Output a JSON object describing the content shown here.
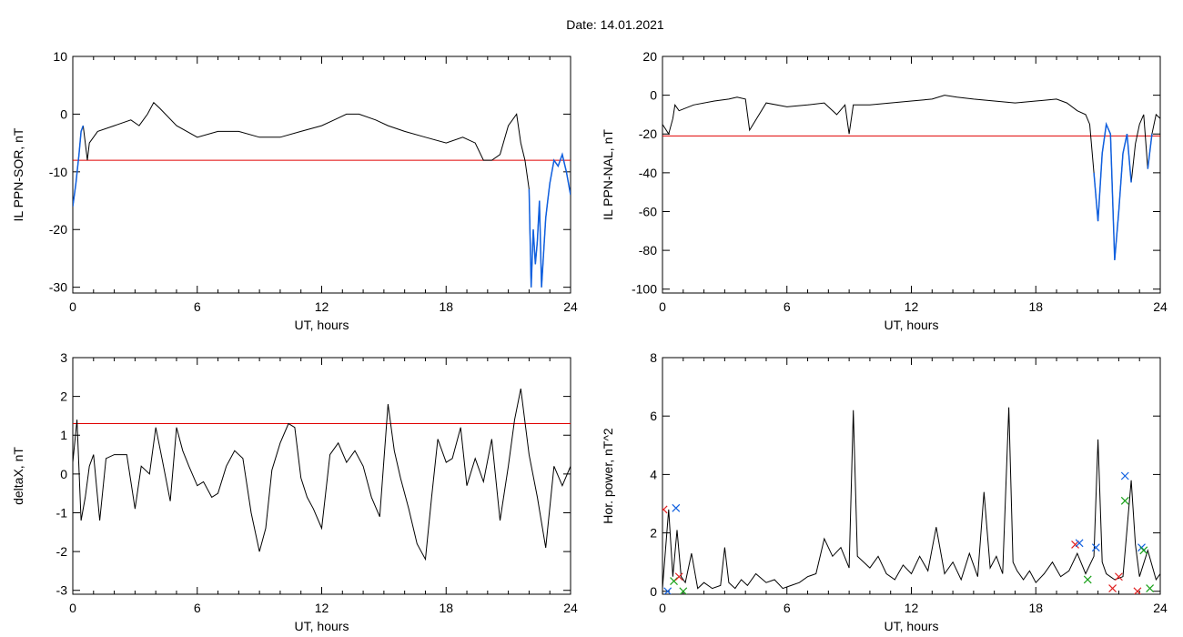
{
  "page": {
    "date_label": "Date:  14.01.2021"
  },
  "colors": {
    "trace": "#000000",
    "threshold": "#e00000",
    "highlight": "#1060e0",
    "marker_blue": "#1060e0",
    "marker_green": "#18a018",
    "marker_red": "#e02020"
  },
  "chart_data": [
    {
      "type": "line",
      "xlabel": "UT, hours",
      "ylabel": "IL PPN-SOR, nT",
      "xlim": [
        0,
        24
      ],
      "ylim": [
        -31,
        10
      ],
      "xticks": [
        0,
        6,
        12,
        18,
        24
      ],
      "yticks": [
        10,
        0,
        -10,
        -20,
        -30
      ],
      "grid": false,
      "threshold": -8,
      "series": [
        {
          "values_x": [
            0,
            0.15,
            0.3,
            0.4,
            0.5,
            0.7,
            0.8,
            1.2,
            2,
            2.8,
            3.2,
            3.6,
            3.9,
            4.2,
            5,
            6,
            7,
            8,
            9,
            10,
            11,
            12,
            12.6,
            13.2,
            13.8,
            14.6,
            15.2,
            16,
            17,
            18,
            18.8,
            19.4,
            19.8,
            20.2,
            20.6,
            21,
            21.4,
            21.6,
            21.8,
            22,
            22.1,
            22.2,
            22.3,
            22.4,
            22.5,
            22.6,
            22.7,
            22.8,
            22.9,
            23,
            23.1,
            23.2,
            23.4,
            23.6,
            23.8,
            24
          ],
          "values_y": [
            -16,
            -12,
            -7,
            -3,
            -2,
            -8,
            -5,
            -3,
            -2,
            -1,
            -2,
            0,
            2,
            1,
            -2,
            -4,
            -3,
            -3,
            -4,
            -4,
            -3,
            -2,
            -1,
            0,
            0,
            -1,
            -2,
            -3,
            -4,
            -5,
            -4,
            -5,
            -8,
            -8,
            -7,
            -2,
            0,
            -5,
            -8,
            -13,
            -30,
            -20,
            -26,
            -22,
            -15,
            -30,
            -24,
            -18,
            -15,
            -12,
            -10,
            -8,
            -9,
            -7,
            -10,
            -14
          ]
        }
      ],
      "highlight_segments": [
        [
          0,
          0.6
        ],
        [
          22,
          24
        ]
      ]
    },
    {
      "type": "line",
      "xlabel": "UT, hours",
      "ylabel": "IL PPN-NAL, nT",
      "xlim": [
        0,
        24
      ],
      "ylim": [
        -102,
        20
      ],
      "xticks": [
        0,
        6,
        12,
        18,
        24
      ],
      "yticks": [
        20,
        0,
        -20,
        -40,
        -60,
        -80,
        -100
      ],
      "grid": false,
      "threshold": -21,
      "series": [
        {
          "values_x": [
            0,
            0.3,
            0.5,
            0.6,
            0.8,
            1.5,
            2.5,
            3.2,
            3.6,
            4,
            4.2,
            5,
            6,
            7,
            7.8,
            8,
            8.4,
            8.8,
            9,
            9.2,
            10,
            11,
            12,
            13,
            13.6,
            14.2,
            15,
            16,
            17,
            18,
            19,
            19.5,
            20,
            20.4,
            20.6,
            20.8,
            21,
            21.2,
            21.4,
            21.6,
            21.8,
            22,
            22.2,
            22.4,
            22.6,
            22.8,
            23,
            23.2,
            23.4,
            23.6,
            23.8,
            24
          ],
          "values_y": [
            -15,
            -20,
            -12,
            -5,
            -8,
            -5,
            -3,
            -2,
            -1,
            -2,
            -18,
            -4,
            -6,
            -5,
            -4,
            -6,
            -10,
            -5,
            -20,
            -5,
            -5,
            -4,
            -3,
            -2,
            0,
            -1,
            -2,
            -3,
            -4,
            -3,
            -2,
            -4,
            -8,
            -10,
            -15,
            -40,
            -65,
            -30,
            -15,
            -20,
            -85,
            -60,
            -30,
            -20,
            -45,
            -25,
            -15,
            -10,
            -38,
            -20,
            -10,
            -12
          ]
        }
      ],
      "highlight_segments": [
        [
          20.7,
          22.7
        ],
        [
          23.3,
          23.6
        ]
      ]
    },
    {
      "type": "line",
      "xlabel": "UT, hours",
      "ylabel": "deltaX, nT",
      "xlim": [
        0,
        24
      ],
      "ylim": [
        -3.1,
        3
      ],
      "xticks": [
        0,
        6,
        12,
        18,
        24
      ],
      "yticks": [
        3,
        2,
        1,
        0,
        -1,
        -2,
        -3
      ],
      "grid": false,
      "threshold": 1.3,
      "series": [
        {
          "values_x": [
            0,
            0.2,
            0.4,
            0.6,
            0.8,
            1,
            1.3,
            1.6,
            2,
            2.6,
            3,
            3.3,
            3.7,
            4,
            4.3,
            4.7,
            5,
            5.3,
            5.6,
            6,
            6.3,
            6.7,
            7,
            7.4,
            7.8,
            8.2,
            8.6,
            9,
            9.3,
            9.6,
            10,
            10.4,
            10.7,
            11,
            11.3,
            11.6,
            12,
            12.4,
            12.8,
            13.2,
            13.6,
            14,
            14.4,
            14.8,
            15.2,
            15.5,
            15.8,
            16.2,
            16.6,
            17,
            17.3,
            17.6,
            18,
            18.3,
            18.7,
            19,
            19.4,
            19.8,
            20.2,
            20.6,
            21,
            21.3,
            21.6,
            22,
            22.4,
            22.8,
            23.2,
            23.6,
            24
          ],
          "values_y": [
            0.3,
            1.4,
            -1.2,
            -0.6,
            0.2,
            0.5,
            -1.2,
            0.4,
            0.5,
            0.5,
            -0.9,
            0.2,
            0,
            1.2,
            0.4,
            -0.7,
            1.2,
            0.6,
            0.2,
            -0.3,
            -0.2,
            -0.6,
            -0.5,
            0.2,
            0.6,
            0.4,
            -1,
            -2,
            -1.4,
            0.1,
            0.8,
            1.3,
            1.2,
            -0.1,
            -0.6,
            -0.9,
            -1.4,
            0.5,
            0.8,
            0.3,
            0.6,
            0.2,
            -0.6,
            -1.1,
            1.8,
            0.6,
            -0.1,
            -0.9,
            -1.8,
            -2.2,
            -0.6,
            0.9,
            0.3,
            0.4,
            1.2,
            -0.3,
            0.4,
            -0.2,
            0.9,
            -1.2,
            0.2,
            1.4,
            2.2,
            0.5,
            -0.6,
            -1.9,
            0.2,
            -0.3,
            0.2
          ]
        }
      ]
    },
    {
      "type": "line",
      "xlabel": "UT, hours",
      "ylabel": "Hor. power, nT^2",
      "xlim": [
        0,
        24
      ],
      "ylim": [
        -0.1,
        8
      ],
      "xticks": [
        0,
        6,
        12,
        18,
        24
      ],
      "yticks": [
        8,
        6,
        4,
        2,
        0
      ],
      "grid": false,
      "series": [
        {
          "values_x": [
            0,
            0.3,
            0.5,
            0.7,
            0.9,
            1.1,
            1.4,
            1.7,
            2,
            2.4,
            2.8,
            3,
            3.2,
            3.5,
            3.8,
            4.1,
            4.5,
            5,
            5.4,
            5.8,
            6.2,
            6.6,
            7,
            7.4,
            7.8,
            8.2,
            8.6,
            9,
            9.2,
            9.4,
            9.7,
            10,
            10.4,
            10.8,
            11.2,
            11.6,
            12,
            12.4,
            12.8,
            13.2,
            13.6,
            14,
            14.4,
            14.8,
            15.2,
            15.5,
            15.8,
            16.1,
            16.4,
            16.7,
            16.9,
            17.1,
            17.4,
            17.7,
            18,
            18.4,
            18.8,
            19.2,
            19.6,
            20,
            20.4,
            20.8,
            21,
            21.2,
            21.4,
            21.8,
            22.2,
            22.6,
            22.8,
            23,
            23.4,
            23.8,
            24
          ],
          "values_y": [
            0.1,
            2.8,
            0.5,
            2.1,
            0.5,
            0.3,
            1.3,
            0.1,
            0.3,
            0.1,
            0.2,
            1.5,
            0.3,
            0.1,
            0.4,
            0.2,
            0.6,
            0.3,
            0.4,
            0.1,
            0.2,
            0.3,
            0.5,
            0.6,
            1.8,
            1.2,
            1.5,
            0.8,
            6.2,
            1.2,
            1.0,
            0.8,
            1.2,
            0.6,
            0.4,
            0.9,
            0.6,
            1.2,
            0.7,
            2.2,
            0.6,
            1.0,
            0.4,
            1.3,
            0.5,
            3.4,
            0.8,
            1.2,
            0.6,
            6.3,
            1.0,
            0.7,
            0.4,
            0.7,
            0.3,
            0.6,
            1.0,
            0.5,
            0.7,
            1.3,
            0.6,
            1.2,
            5.2,
            1.0,
            0.6,
            0.4,
            0.5,
            3.8,
            1.6,
            0.5,
            1.4,
            0.4,
            0.6
          ]
        }
      ],
      "markers": [
        {
          "x": 0.05,
          "y": 2.8,
          "color": "red"
        },
        {
          "x": 0.25,
          "y": 0.0,
          "color": "blue"
        },
        {
          "x": 0.65,
          "y": 2.85,
          "color": "blue"
        },
        {
          "x": 0.55,
          "y": 0.35,
          "color": "green"
        },
        {
          "x": 0.8,
          "y": 0.5,
          "color": "red"
        },
        {
          "x": 1.0,
          "y": 0.0,
          "color": "green"
        },
        {
          "x": 19.9,
          "y": 1.6,
          "color": "red"
        },
        {
          "x": 20.1,
          "y": 1.65,
          "color": "blue"
        },
        {
          "x": 20.5,
          "y": 0.4,
          "color": "green"
        },
        {
          "x": 20.9,
          "y": 1.5,
          "color": "blue"
        },
        {
          "x": 21.7,
          "y": 0.1,
          "color": "red"
        },
        {
          "x": 22.0,
          "y": 0.5,
          "color": "red"
        },
        {
          "x": 22.3,
          "y": 3.95,
          "color": "blue"
        },
        {
          "x": 22.3,
          "y": 3.1,
          "color": "green"
        },
        {
          "x": 22.9,
          "y": 0.0,
          "color": "red"
        },
        {
          "x": 23.1,
          "y": 1.5,
          "color": "blue"
        },
        {
          "x": 23.2,
          "y": 1.4,
          "color": "green"
        },
        {
          "x": 23.5,
          "y": 0.1,
          "color": "green"
        }
      ]
    }
  ]
}
